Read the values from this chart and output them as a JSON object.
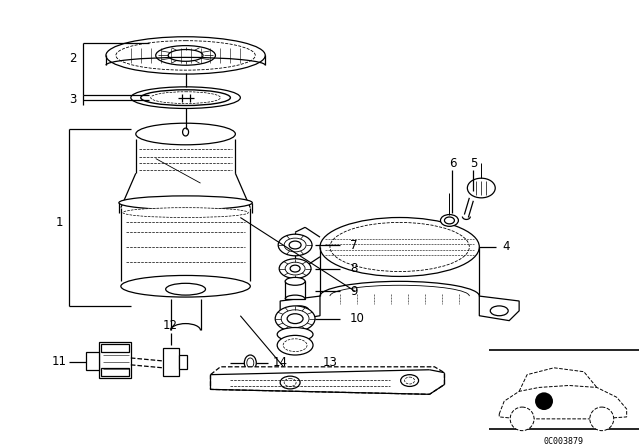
{
  "bg_color": "#ffffff",
  "fig_width": 6.4,
  "fig_height": 4.48,
  "dpi": 100,
  "diagram_code_text": "0C003879"
}
